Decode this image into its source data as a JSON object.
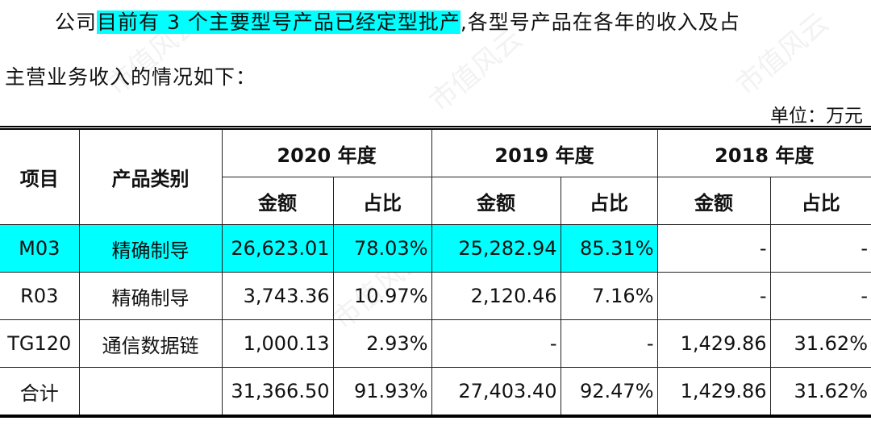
{
  "paragraph": {
    "line1_prefix": "公司",
    "line1_highlight": "目前有 3 个主要型号产品已经定型批产",
    "line1_suffix": ",各型号产品在各年的收入及占",
    "line2": "主营业务收入的情况如下："
  },
  "unit_label": "单位：万元",
  "highlight_color": "#00ffff",
  "watermark": "市值风云",
  "table": {
    "headers": {
      "item": "项目",
      "category": "产品类别",
      "years": [
        "2020 年度",
        "2019 年度",
        "2018 年度"
      ],
      "amount": "金额",
      "ratio": "占比"
    },
    "rows": [
      {
        "item": "M03",
        "category": "精确制导",
        "v": [
          "26,623.01",
          "78.03%",
          "25,282.94",
          "85.31%",
          "-",
          "-"
        ],
        "highlighted": true
      },
      {
        "item": "R03",
        "category": "精确制导",
        "v": [
          "3,743.36",
          "10.97%",
          "2,120.46",
          "7.16%",
          "-",
          "-"
        ]
      },
      {
        "item": "TG120",
        "category": "通信数据链",
        "v": [
          "1,000.13",
          "2.93%",
          "-",
          "-",
          "1,429.86",
          "31.62%"
        ]
      },
      {
        "item": "合计",
        "category": "",
        "v": [
          "31,366.50",
          "91.93%",
          "27,403.40",
          "92.47%",
          "1,429.86",
          "31.62%"
        ]
      }
    ]
  }
}
